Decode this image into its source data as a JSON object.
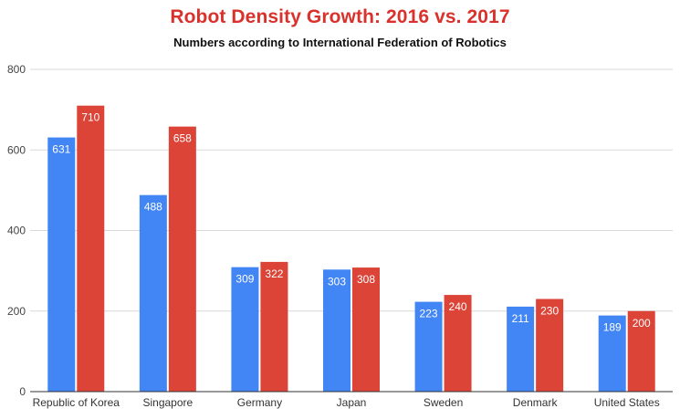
{
  "chart_data": {
    "type": "bar",
    "title": "Robot Density Growth: 2016 vs. 2017",
    "subtitle": "Numbers according to International Federation of Robotics",
    "xlabel": "",
    "ylabel": "",
    "categories": [
      "Republic of Korea",
      "Singapore",
      "Germany",
      "Japan",
      "Sweden",
      "Denmark",
      "United States"
    ],
    "series": [
      {
        "values": [
          631,
          488,
          309,
          303,
          223,
          211,
          189
        ],
        "color": "#4285f4"
      },
      {
        "values": [
          710,
          658,
          322,
          308,
          240,
          230,
          200
        ],
        "color": "#db4437"
      }
    ],
    "ylim": [
      0,
      800
    ],
    "yticks": [
      0,
      200,
      400,
      600,
      800
    ],
    "grid": true,
    "data_labels": true,
    "colors": {
      "title": "#d9312b",
      "grid": "#d9d9d9",
      "axis": "#333333"
    }
  }
}
